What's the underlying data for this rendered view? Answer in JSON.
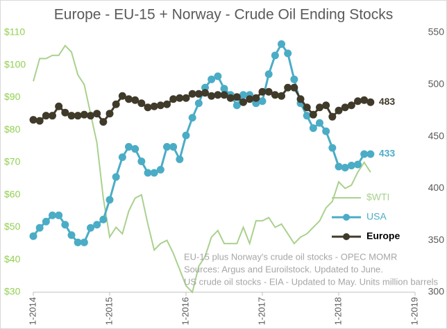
{
  "chart_data": {
    "type": "line",
    "title": "Europe - EU-15 + Norway - Crude Oil Ending Stocks",
    "x": [
      "2014-01",
      "2014-02",
      "2014-03",
      "2014-04",
      "2014-05",
      "2014-06",
      "2014-07",
      "2014-08",
      "2014-09",
      "2014-10",
      "2014-11",
      "2014-12",
      "2015-01",
      "2015-02",
      "2015-03",
      "2015-04",
      "2015-05",
      "2015-06",
      "2015-07",
      "2015-08",
      "2015-09",
      "2015-10",
      "2015-11",
      "2015-12",
      "2016-01",
      "2016-02",
      "2016-03",
      "2016-04",
      "2016-05",
      "2016-06",
      "2016-07",
      "2016-08",
      "2016-09",
      "2016-10",
      "2016-11",
      "2016-12",
      "2017-01",
      "2017-02",
      "2017-03",
      "2017-04",
      "2017-05",
      "2017-06",
      "2017-07",
      "2017-08",
      "2017-09",
      "2017-10",
      "2017-11",
      "2017-12",
      "2018-01",
      "2018-02",
      "2018-03",
      "2018-04",
      "2018-05",
      "2018-06"
    ],
    "series": [
      {
        "name": "$WTI",
        "color": "#a9d18e",
        "axis": "y",
        "marker": false,
        "values": [
          95,
          102,
          102,
          103,
          103,
          106,
          104,
          97,
          94,
          85,
          76,
          59,
          47,
          50,
          48,
          55,
          59,
          60,
          51,
          43,
          45,
          46,
          42,
          37,
          32,
          30,
          38,
          41,
          47,
          49,
          45,
          45,
          45,
          50,
          45,
          52,
          52,
          53,
          50,
          51,
          48,
          45,
          47,
          48,
          50,
          52,
          56,
          58,
          64,
          62,
          63,
          67,
          70,
          67
        ]
      },
      {
        "name": "USA",
        "color": "#4bacc6",
        "axis": "y2",
        "marker": true,
        "values": [
          354,
          362,
          368,
          374,
          374,
          365,
          355,
          348,
          348,
          362,
          365,
          370,
          389,
          411,
          430,
          440,
          438,
          426,
          415,
          415,
          418,
          440,
          440,
          428,
          451,
          468,
          482,
          497,
          505,
          508,
          496,
          490,
          480,
          490,
          490,
          482,
          484,
          510,
          528,
          539,
          530,
          505,
          482,
          470,
          458,
          463,
          455,
          439,
          421,
          420,
          422,
          423,
          433,
          433
        ]
      },
      {
        "name": "Europe",
        "color": "#403a2a",
        "axis": "y2",
        "marker": true,
        "values": [
          466,
          465,
          470,
          470,
          479,
          473,
          470,
          470,
          471,
          470,
          472,
          464,
          472,
          481,
          489,
          486,
          485,
          482,
          478,
          479,
          480,
          481,
          486,
          487,
          487,
          491,
          491,
          492,
          489,
          490,
          490,
          487,
          488,
          483,
          486,
          487,
          493,
          493,
          490,
          489,
          497,
          497,
          486,
          478,
          471,
          478,
          480,
          469,
          475,
          478,
          480,
          484,
          485,
          483
        ]
      }
    ],
    "xlim": [
      "2014-01",
      "2019-01"
    ],
    "xticks": [
      {
        "value": "2014-01",
        "label": "1-2014"
      },
      {
        "value": "2015-01",
        "label": "1-2015"
      },
      {
        "value": "2016-01",
        "label": "1-2016"
      },
      {
        "value": "2017-01",
        "label": "1-2017"
      },
      {
        "value": "2018-01",
        "label": "1-2018"
      },
      {
        "value": "2019-01",
        "label": "1-2019"
      }
    ],
    "ylim": [
      30,
      110
    ],
    "yticks": [
      {
        "value": 30,
        "label": "$30"
      },
      {
        "value": 40,
        "label": "$40"
      },
      {
        "value": 50,
        "label": "$50"
      },
      {
        "value": 60,
        "label": "$60"
      },
      {
        "value": 70,
        "label": "$70"
      },
      {
        "value": 80,
        "label": "$80"
      },
      {
        "value": 90,
        "label": "$90"
      },
      {
        "value": 100,
        "label": "$100"
      },
      {
        "value": 110,
        "label": "$110"
      }
    ],
    "y2lim": [
      300,
      550
    ],
    "y2ticks": [
      300,
      350,
      400,
      450,
      500,
      550
    ],
    "annotations": [
      "EU-15 plus Norway's crude oil stocks - OPEC MOMR",
      "Sources: Argus and Euroilstock. Updated to June.",
      "US crude oil stocks - EIA - Updated to May. Units million barrels"
    ]
  }
}
